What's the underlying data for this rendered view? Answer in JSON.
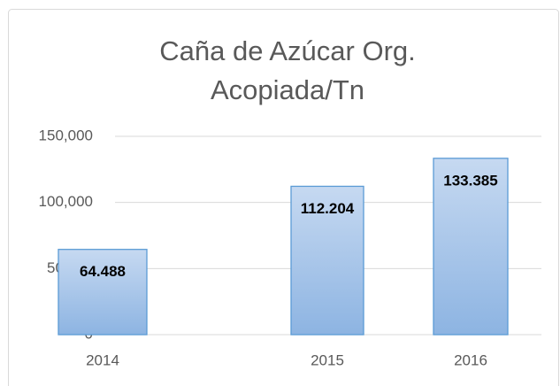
{
  "chart_data": {
    "type": "bar",
    "title": [
      "Caña de Azúcar Org.",
      "Acopiada/Tn"
    ],
    "categories": [
      "2014",
      "2015",
      "2016"
    ],
    "values": [
      64488,
      112204,
      133385
    ],
    "value_labels": [
      "64.488",
      "112.204",
      "133.385"
    ],
    "color": "#8db4e2",
    "ylim": [
      0,
      150000
    ],
    "yticks": [
      0,
      {
        "value": 50000,
        "label": "50,000"
      },
      {
        "value": 100000,
        "label": "100,000"
      },
      {
        "value": 150000,
        "label": "150,000"
      }
    ],
    "grid": true
  }
}
